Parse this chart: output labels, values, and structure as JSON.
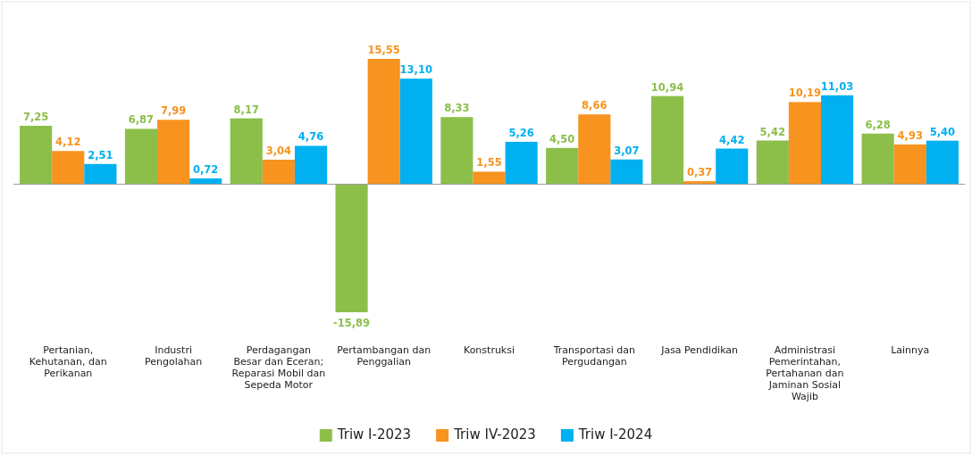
{
  "chart_data": {
    "type": "bar",
    "categories": [
      "Pertanian, Kehutanan, dan Perikanan",
      "Industri Pengolahan",
      "Perdagangan Besar dan Eceran; Reparasi Mobil dan Sepeda Motor",
      "Pertambangan dan Penggalian",
      "Konstruksi",
      "Transportasi dan Pergudangan",
      "Jasa Pendidikan",
      "Administrasi Pemerintahan, Pertahanan dan Jaminan Sosial Wajib",
      "Lainnya"
    ],
    "series": [
      {
        "name": "Triw I-2023",
        "color": "#8cbf4a",
        "values": [
          7.25,
          6.87,
          8.17,
          -15.89,
          8.33,
          4.5,
          10.94,
          5.42,
          6.28
        ],
        "value_labels": [
          "7,25",
          "6,87",
          "8,17",
          "-15,89",
          "8,33",
          "4,50",
          "10,94",
          "5,42",
          "6,28"
        ]
      },
      {
        "name": "Triw IV-2023",
        "color": "#f7931e",
        "values": [
          4.12,
          7.99,
          3.04,
          15.55,
          1.55,
          8.66,
          0.37,
          10.19,
          4.93
        ],
        "value_labels": [
          "4,12",
          "7,99",
          "3,04",
          "15,55",
          "1,55",
          "8,66",
          "0,37",
          "10,19",
          "4,93"
        ]
      },
      {
        "name": "Triw I-2024",
        "color": "#00b0f0",
        "values": [
          2.51,
          0.72,
          4.76,
          13.1,
          5.26,
          3.07,
          4.42,
          11.03,
          5.4
        ],
        "value_labels": [
          "2,51",
          "0,72",
          "4,76",
          "13,10",
          "5,26",
          "3,07",
          "4,42",
          "11,03",
          "5,40"
        ]
      }
    ],
    "legend": "bottom",
    "grid": false
  }
}
